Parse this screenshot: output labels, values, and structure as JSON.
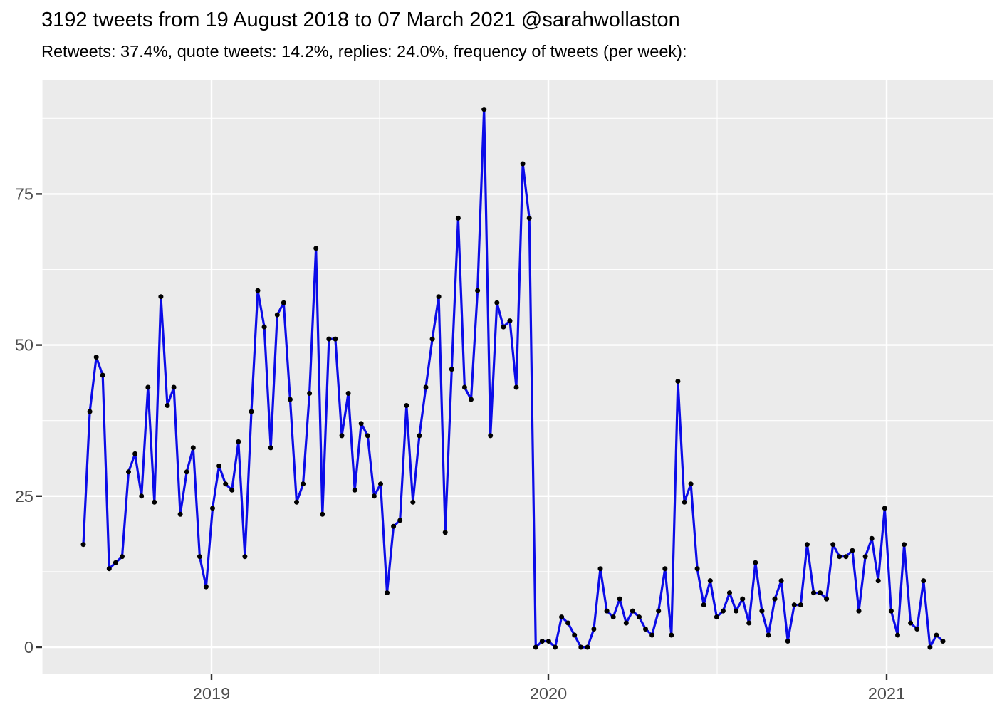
{
  "title": "3192 tweets from 19 August 2018 to 07 March 2021 @sarahwollaston",
  "subtitle": "Retweets: 37.4%, quote tweets: 14.2%, replies: 24.0%, frequency of tweets (per week):",
  "chart_data": {
    "type": "line",
    "title": "3192 tweets from 19 August 2018 to 07 March 2021 @sarahwollaston",
    "subtitle": "Retweets: 37.4%, quote tweets: 14.2%, replies: 24.0%, frequency of tweets (per week):",
    "series_name": "tweets per week",
    "x_start_date": "2018-08-19",
    "x_end_date": "2021-03-07",
    "x_interval": "week",
    "values": [
      17,
      39,
      48,
      45,
      13,
      14,
      15,
      29,
      32,
      25,
      43,
      24,
      58,
      40,
      43,
      22,
      29,
      33,
      15,
      10,
      23,
      30,
      27,
      26,
      34,
      15,
      39,
      59,
      53,
      33,
      55,
      57,
      41,
      24,
      27,
      42,
      66,
      22,
      51,
      51,
      35,
      42,
      26,
      37,
      35,
      25,
      27,
      9,
      20,
      21,
      40,
      24,
      35,
      43,
      51,
      58,
      19,
      46,
      71,
      43,
      41,
      59,
      89,
      35,
      57,
      53,
      54,
      43,
      80,
      71,
      0,
      1,
      1,
      0,
      5,
      4,
      2,
      0,
      0,
      3,
      13,
      6,
      5,
      8,
      4,
      6,
      5,
      3,
      2,
      6,
      13,
      2,
      44,
      24,
      27,
      13,
      7,
      11,
      5,
      6,
      9,
      6,
      8,
      4,
      14,
      6,
      2,
      8,
      11,
      1,
      7,
      7,
      17,
      9,
      9,
      8,
      17,
      15,
      15,
      16,
      6,
      15,
      18,
      11,
      23,
      6,
      2,
      17,
      4,
      3,
      11,
      0,
      2,
      1
    ],
    "x_tick_labels": [
      "2019",
      "2020",
      "2021"
    ],
    "y_tick_labels": [
      "0",
      "25",
      "50",
      "75"
    ],
    "y_ticks": [
      0,
      25,
      50,
      75
    ],
    "y_minor_ticks": [
      12.5,
      37.5,
      62.5,
      87.5
    ],
    "ylim": [
      -4.5,
      93.7
    ],
    "xlabel": "",
    "ylabel": "",
    "grid": true,
    "legend": "none",
    "colors": {
      "line": "#0B0BE8",
      "point": "#000000",
      "panel_bg": "#EBEBEB",
      "grid": "#FFFFFF",
      "axis_text": "#4D4D4D",
      "tick_mark": "#333333",
      "title_text": "#000000"
    }
  }
}
